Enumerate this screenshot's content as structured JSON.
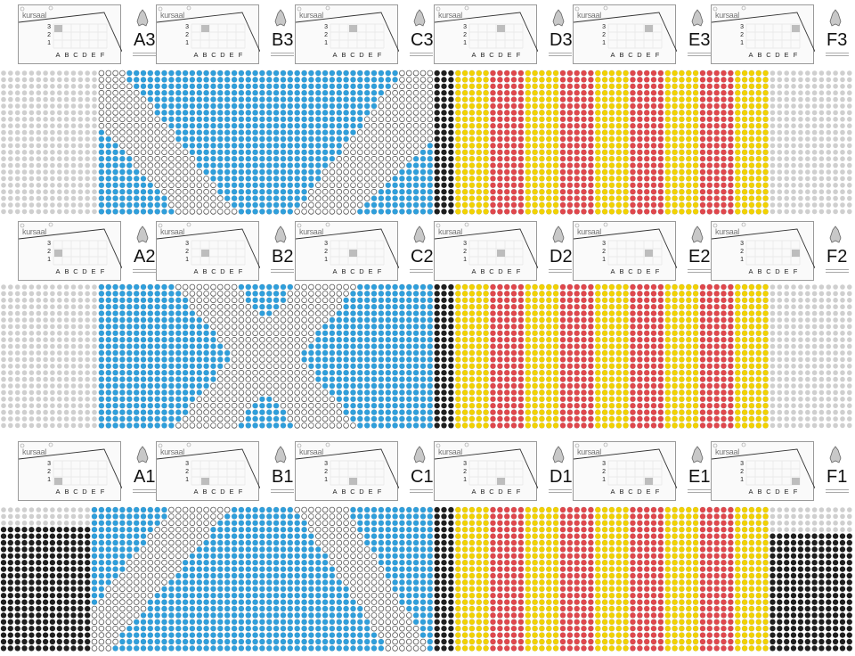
{
  "logo_text": "kursaal",
  "grid": {
    "rows": [
      "3",
      "2",
      "1"
    ],
    "cols": [
      "A",
      "B",
      "C",
      "D",
      "E",
      "F"
    ]
  },
  "bands": [
    {
      "sections": [
        {
          "label": "A3",
          "highlight": {
            "col": "A",
            "row": "3"
          }
        },
        {
          "label": "B3",
          "highlight": {
            "col": "B",
            "row": "3"
          }
        },
        {
          "label": "C3",
          "highlight": {
            "col": "C",
            "row": "3"
          }
        },
        {
          "label": "D3",
          "highlight": {
            "col": "D",
            "row": "3"
          }
        },
        {
          "label": "E3",
          "highlight": {
            "col": "E",
            "row": "3"
          }
        },
        {
          "label": "F3",
          "highlight": {
            "col": "F",
            "row": "3"
          }
        }
      ]
    },
    {
      "sections": [
        {
          "label": "A2",
          "highlight": {
            "col": "A",
            "row": "2"
          }
        },
        {
          "label": "B2",
          "highlight": {
            "col": "B",
            "row": "2"
          }
        },
        {
          "label": "C2",
          "highlight": {
            "col": "C",
            "row": "2"
          }
        },
        {
          "label": "D2",
          "highlight": {
            "col": "D",
            "row": "2"
          }
        },
        {
          "label": "E2",
          "highlight": {
            "col": "E",
            "row": "2"
          }
        },
        {
          "label": "F2",
          "highlight": {
            "col": "F",
            "row": "2"
          }
        }
      ]
    },
    {
      "sections": [
        {
          "label": "A1",
          "highlight": {
            "col": "A",
            "row": "1"
          }
        },
        {
          "label": "B1",
          "highlight": {
            "col": "B",
            "row": "1"
          }
        },
        {
          "label": "C1",
          "highlight": {
            "col": "C",
            "row": "1"
          }
        },
        {
          "label": "D1",
          "highlight": {
            "col": "D",
            "row": "1"
          }
        },
        {
          "label": "E1",
          "highlight": {
            "col": "E",
            "row": "1"
          }
        },
        {
          "label": "F1",
          "highlight": {
            "col": "F",
            "row": "1"
          }
        }
      ]
    }
  ],
  "seat_colors": {
    "unused": "#cfcfcf",
    "blue": "#2f9fdc",
    "white": "#ffffff",
    "black": "#1e1e1e",
    "yellow": "#f2d200",
    "red": "#e0474c"
  },
  "stripe_pattern": [
    "black",
    "yellow",
    "red",
    "yellow",
    "red",
    "yellow",
    "red",
    "yellow",
    "red",
    "yellow"
  ]
}
